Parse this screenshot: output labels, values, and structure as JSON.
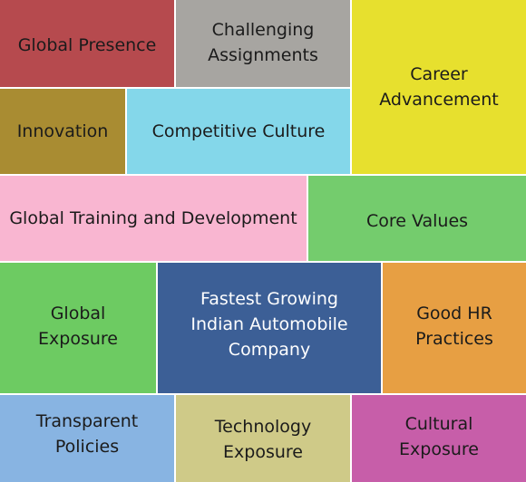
{
  "tiles": [
    {
      "id": "global-presence",
      "label": "Global Presence",
      "color": "#b64a4e"
    },
    {
      "id": "challenging",
      "label": "Challenging\nAssignments",
      "color": "#a7a5a1"
    },
    {
      "id": "career",
      "label": "Career\nAdvancement",
      "color": "#e7e02e"
    },
    {
      "id": "innovation",
      "label": "Innovation",
      "color": "#a98c32"
    },
    {
      "id": "competitive",
      "label": "Competitive Culture",
      "color": "#84d7ea"
    },
    {
      "id": "global-training",
      "label": "Global Training and Development",
      "color": "#f9b6d1"
    },
    {
      "id": "core-values",
      "label": "Core Values",
      "color": "#74cc6d"
    },
    {
      "id": "global-exposure",
      "label": "Global\nExposure",
      "color": "#6dcb62"
    },
    {
      "id": "fastest",
      "label": "Fastest Growing\nIndian Automobile\nCompany",
      "color": "#3c5f96"
    },
    {
      "id": "good-hr",
      "label": "Good HR\nPractices",
      "color": "#e79f43"
    },
    {
      "id": "transparent",
      "label": "Transparent\nPolicies",
      "color": "#88b4e2"
    },
    {
      "id": "technology",
      "label": "Technology\nExposure",
      "color": "#cfca88"
    },
    {
      "id": "cultural",
      "label": "Cultural\nExposure",
      "color": "#c75ea9"
    }
  ]
}
